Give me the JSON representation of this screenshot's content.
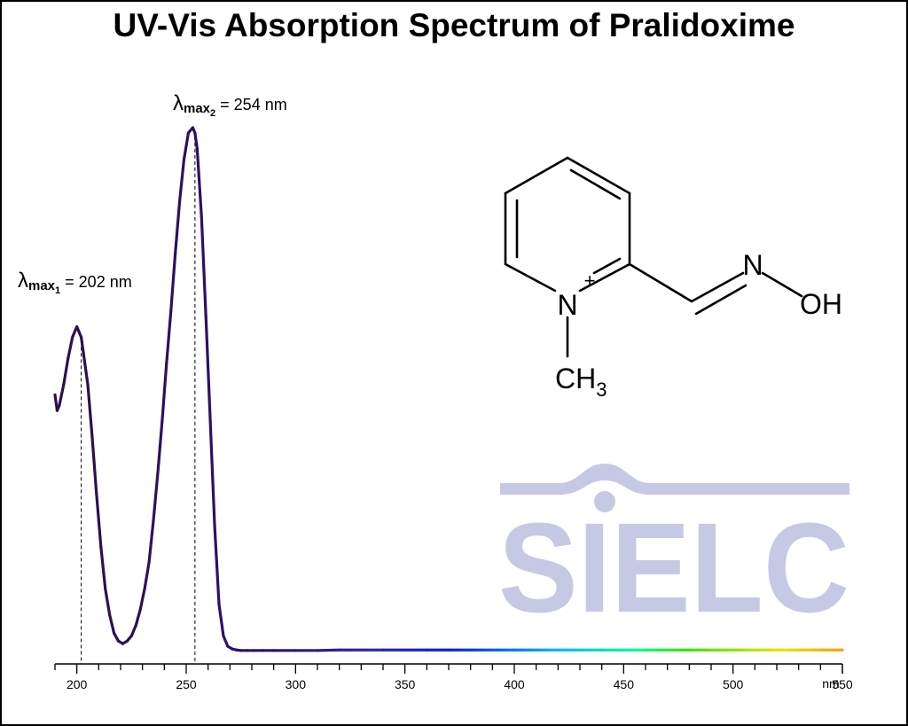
{
  "chart_data": {
    "type": "line",
    "title": "UV-Vis Absorption Spectrum of Pralidoxime",
    "xlabel": "",
    "ylabel": "",
    "x_unit": "nm",
    "xlim": [
      190,
      550
    ],
    "xticks": [
      200,
      250,
      300,
      350,
      400,
      450,
      500,
      550
    ],
    "ylim": [
      0,
      1.0
    ],
    "grid": false,
    "series": [
      {
        "x": [
          190,
          191,
          192,
          194,
          196,
          198,
          200,
          201,
          202,
          203,
          205,
          207,
          209,
          211,
          213,
          215,
          217,
          219,
          221,
          223,
          225,
          227,
          229,
          231,
          233,
          235,
          237,
          239,
          241,
          243,
          245,
          247,
          249,
          251,
          253,
          254,
          255,
          257,
          259,
          261,
          263,
          265,
          267,
          269,
          271,
          273,
          275,
          278,
          281,
          285,
          290,
          300,
          310,
          320,
          340,
          360,
          380,
          400,
          420,
          440,
          460,
          480,
          500,
          520,
          540,
          550
        ],
        "y": [
          0.49,
          0.46,
          0.47,
          0.51,
          0.56,
          0.6,
          0.62,
          0.61,
          0.6,
          0.57,
          0.51,
          0.41,
          0.3,
          0.2,
          0.12,
          0.07,
          0.035,
          0.02,
          0.015,
          0.02,
          0.03,
          0.05,
          0.08,
          0.12,
          0.17,
          0.25,
          0.34,
          0.44,
          0.55,
          0.65,
          0.76,
          0.86,
          0.94,
          0.99,
          1.0,
          0.99,
          0.96,
          0.83,
          0.64,
          0.44,
          0.24,
          0.09,
          0.03,
          0.01,
          0.005,
          0.003,
          0.002,
          0.002,
          0.002,
          0.002,
          0.002,
          0.002,
          0.002,
          0.003,
          0.003,
          0.003,
          0.003,
          0.003,
          0.003,
          0.003,
          0.003,
          0.003,
          0.003,
          0.003,
          0.003,
          0.003
        ]
      }
    ],
    "annotations": [
      {
        "lambda_label": "λ",
        "sub": "max",
        "subsub": "1",
        "text": " = 202 nm",
        "x": 202
      },
      {
        "lambda_label": "λ",
        "sub": "max",
        "subsub": "2",
        "text": " = 254 nm",
        "x": 254
      }
    ],
    "spectrum_colors": [
      "#2b0f4f",
      "#2d1070",
      "#2a2ba8",
      "#0d1fd0",
      "#00b8ff",
      "#00ff88",
      "#38e000",
      "#e6e600",
      "#ff9900"
    ]
  },
  "structure": {
    "n_plus": "N",
    "plus": "+",
    "ch3": "CH",
    "ch3_sub": "3",
    "oxime_n": "N",
    "oh": "OH"
  },
  "watermark": {
    "text": "SIELC",
    "color": "#c5c9e4"
  }
}
